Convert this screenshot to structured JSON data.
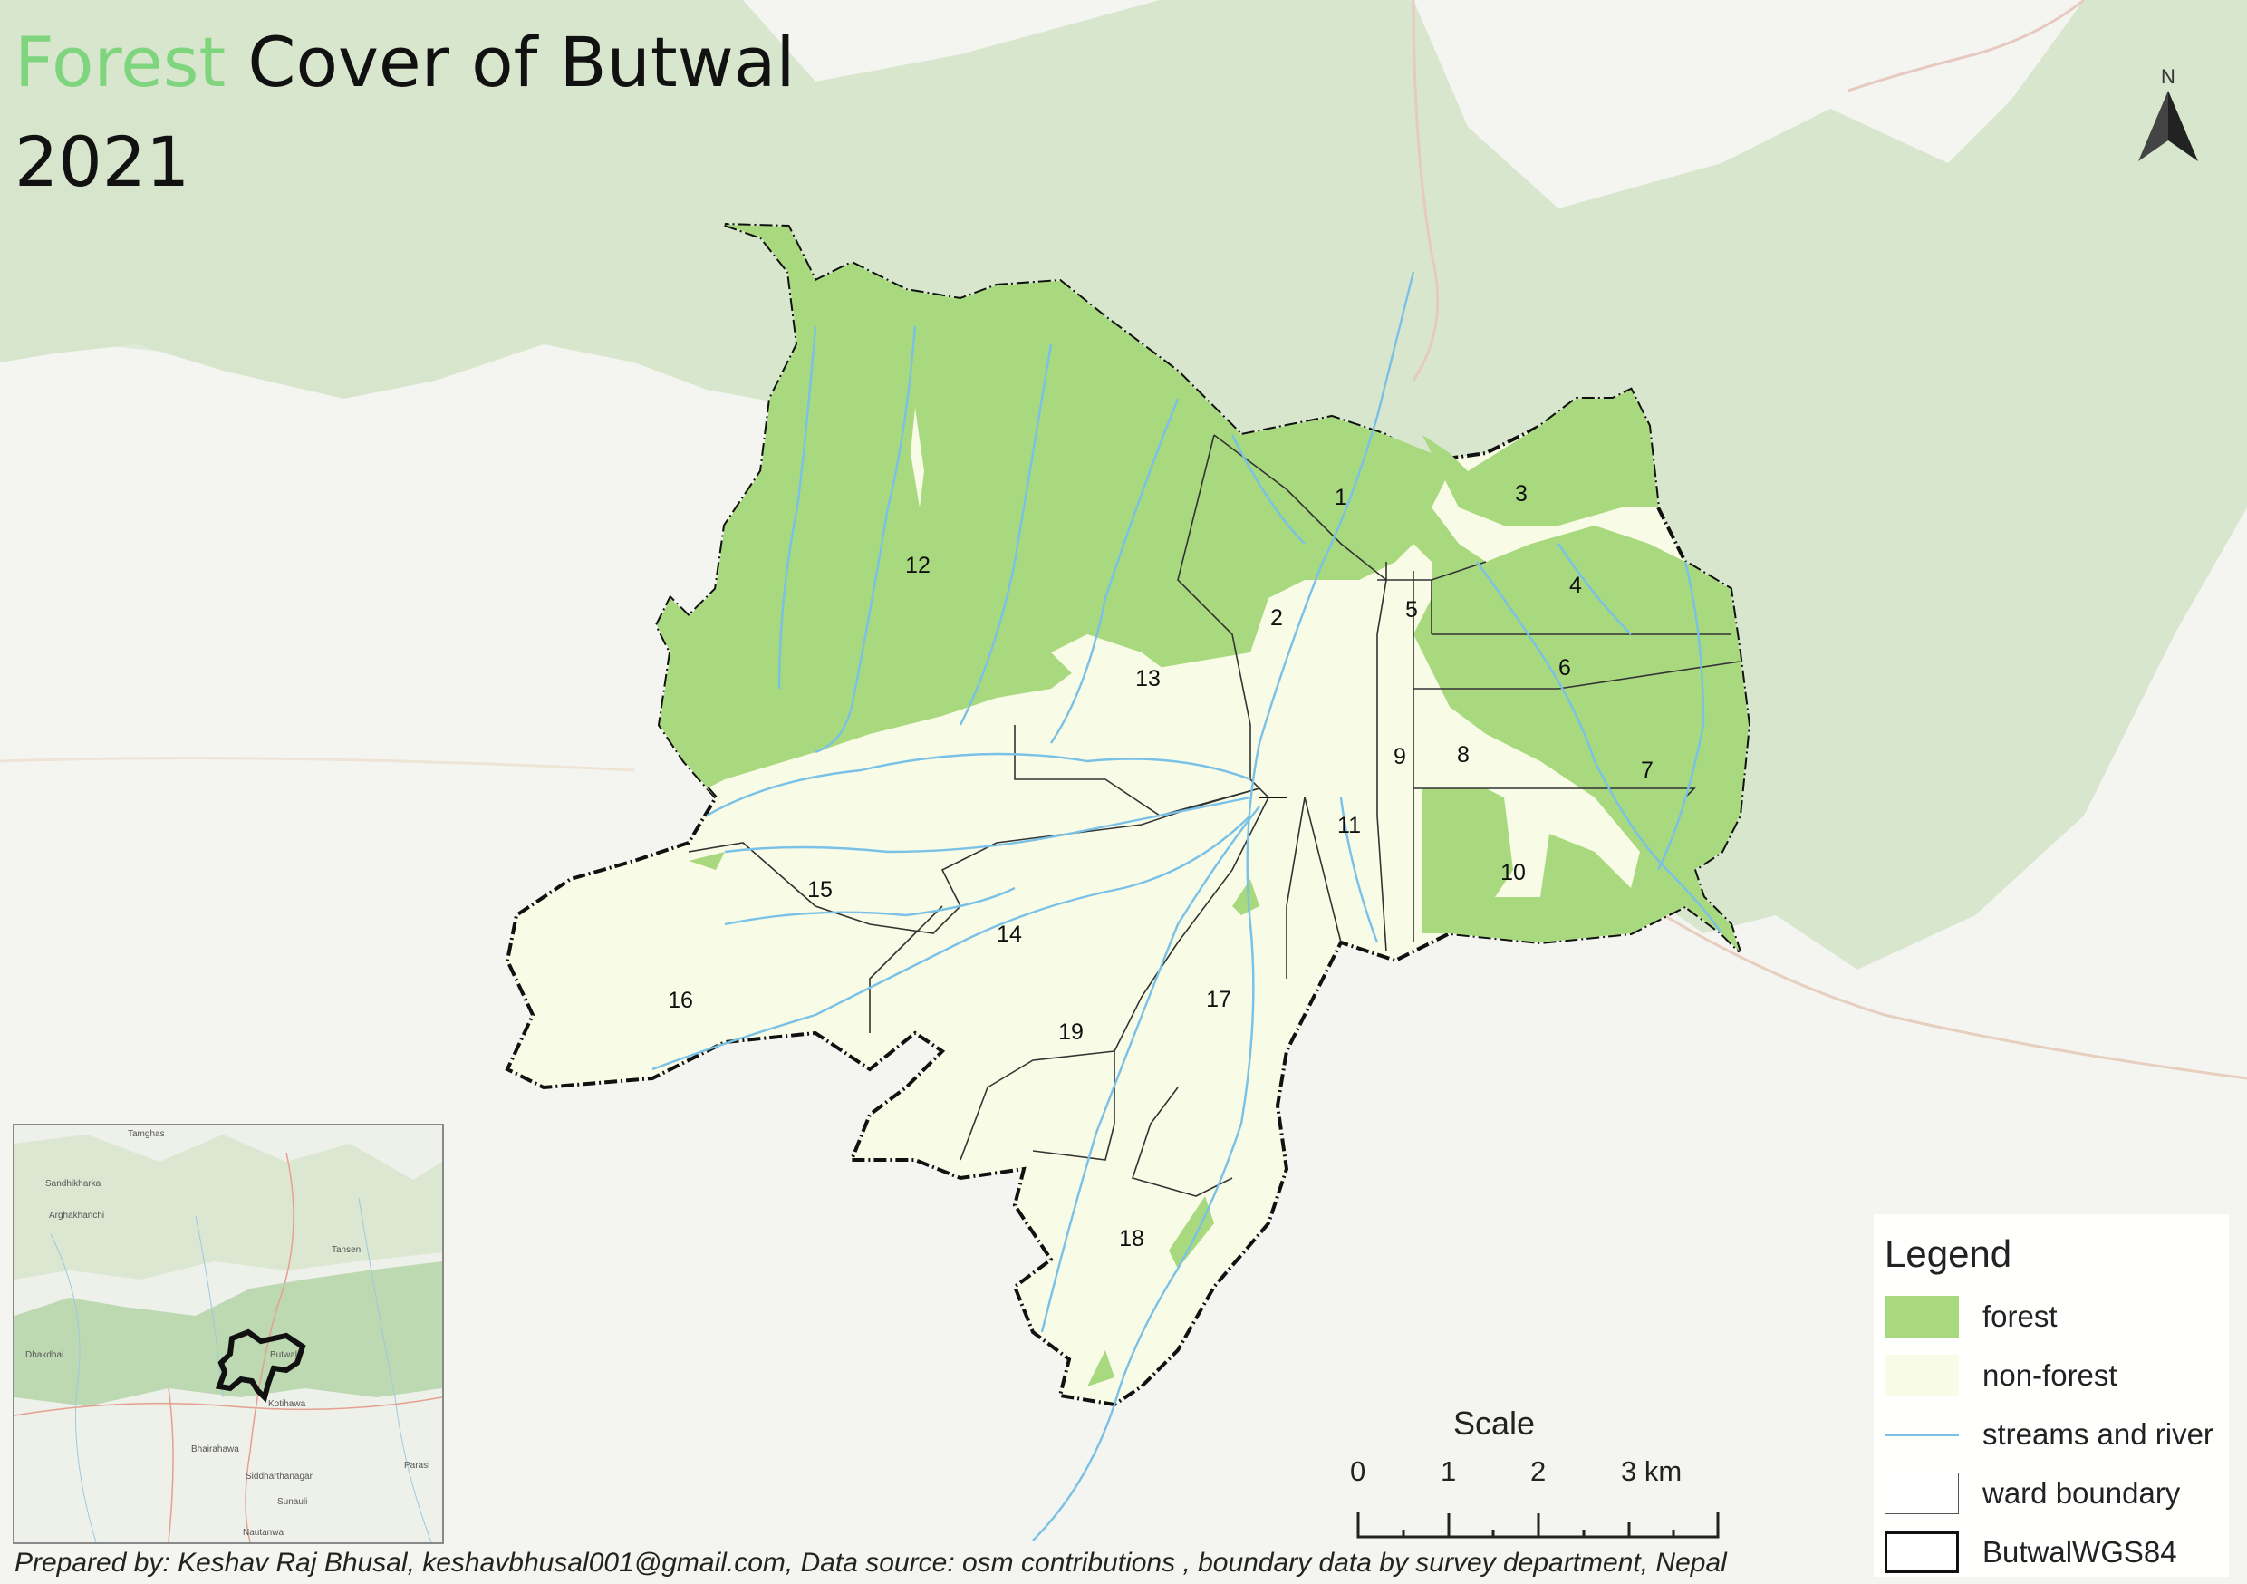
{
  "title": {
    "highlight": "Forest",
    "rest": " Cover of Butwal",
    "year": "2021",
    "highlight_color": "#7fd57e"
  },
  "north_arrow": {
    "label": "N"
  },
  "wards": [
    "1",
    "2",
    "3",
    "4",
    "5",
    "6",
    "7",
    "8",
    "9",
    "10",
    "11",
    "12",
    "13",
    "14",
    "15",
    "16",
    "17",
    "18",
    "19"
  ],
  "legend": {
    "title": "Legend",
    "items": [
      {
        "label": "forest",
        "color": "#a9d97f"
      },
      {
        "label": "non-forest",
        "color": "#f8fbe6"
      },
      {
        "label": "streams and river",
        "color": "#79c1e6"
      },
      {
        "label": "ward boundary",
        "color": "#555555"
      },
      {
        "label": "ButwalWGS84",
        "color": "#111111"
      }
    ]
  },
  "scale": {
    "title": "Scale",
    "ticks": [
      "0",
      "1",
      "2",
      "3 km"
    ]
  },
  "inset": {
    "places": [
      "Tamghas",
      "Sandhikharka",
      "Arghakhanchi",
      "Tansen",
      "Butwal",
      "Dhakdhai",
      "Kotihawa",
      "Bhairahawa",
      "Siddharthanagar",
      "Sunauli",
      "Parasi",
      "Nautanwa"
    ]
  },
  "credit": "Prepared by: Keshav Raj Bhusal, keshavbhusal001@gmail.com, Data source: osm contributions , boundary data by survey department, Nepal"
}
